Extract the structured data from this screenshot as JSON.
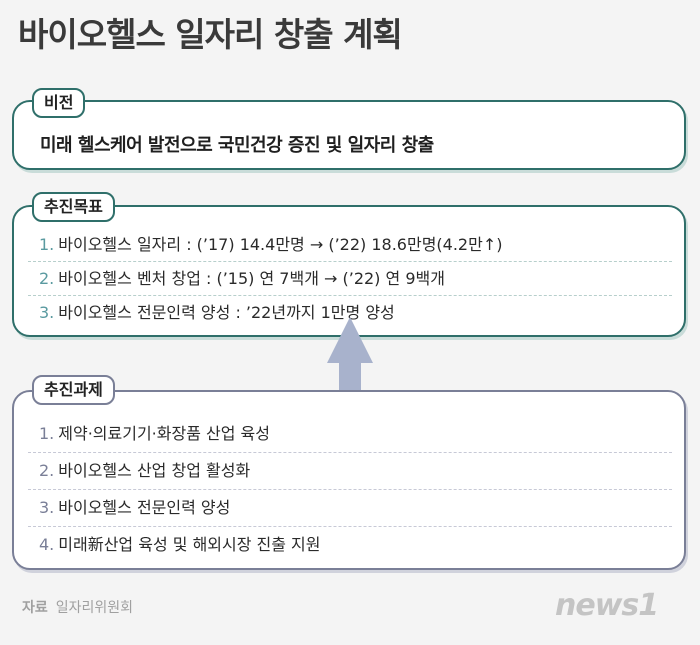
{
  "title": "바이오헬스 일자리 창출 계획",
  "vision": {
    "tag": "비전",
    "text": "미래 헬스케어 발전으로 국민건강 증진 및 일자리 창출"
  },
  "goals": {
    "tag": "추진목표",
    "items": [
      {
        "num": "1.",
        "text": "바이오헬스 일자리 : (’17) 14.4만명 → (’22) 18.6만명(4.2만↑)"
      },
      {
        "num": "2.",
        "text": "바이오헬스 벤처 창업 : (’15) 연 7백개 → (’22) 연 9백개"
      },
      {
        "num": "3.",
        "text": "바이오헬스 전문인력 양성 : ’22년까지 1만명 양성"
      }
    ]
  },
  "tasks": {
    "tag": "추진과제",
    "items": [
      {
        "num": "1.",
        "text": "제약·의료기기·화장품 산업 육성"
      },
      {
        "num": "2.",
        "text": "바이오헬스 산업 창업 활성화"
      },
      {
        "num": "3.",
        "text": "바이오헬스 전문인력 양성"
      },
      {
        "num": "4.",
        "text": "미래新산업 육성 및 해외시장 진출 지원"
      }
    ]
  },
  "source": {
    "label": "자료",
    "value": "일자리위원회"
  },
  "logo": "news1",
  "colors": {
    "teal": "#2f6f6a",
    "slate": "#7a7f97",
    "arrow": "#a8b2cc"
  }
}
